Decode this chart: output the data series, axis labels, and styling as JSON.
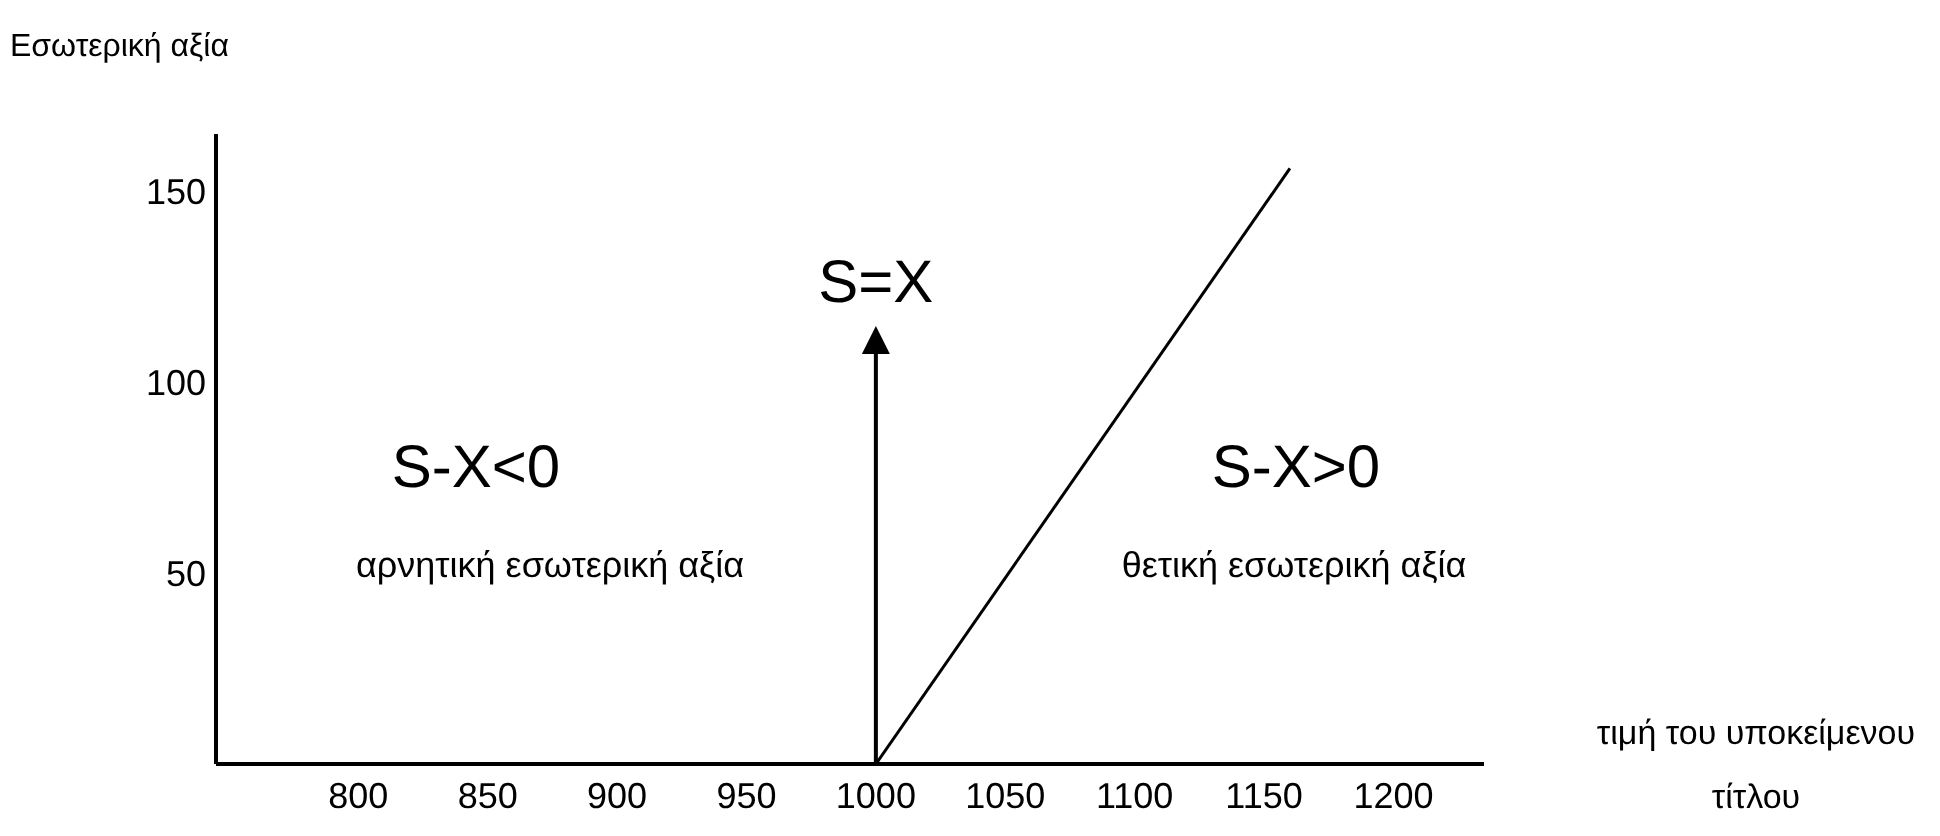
{
  "chart_data": {
    "type": "line",
    "ylabel": "Εσωτερική αξία",
    "xlabel": "τιμή του υποκείμενου τίτλου",
    "xlim": [
      745,
      1235
    ],
    "xticks": [
      800,
      850,
      900,
      950,
      1000,
      1050,
      1100,
      1150,
      1200
    ],
    "ylim": [
      0,
      165
    ],
    "yticks": [
      50,
      100,
      150
    ],
    "grid": false,
    "marker": "none",
    "line_style": "solid",
    "ref_lines": [
      {
        "axis": "x",
        "value": 1000,
        "label": "S=X"
      }
    ],
    "series": [
      {
        "color": "#000000",
        "x": [
          1000,
          1160
        ],
        "values": [
          0,
          156
        ]
      }
    ],
    "annotations": [
      "S-X<0",
      "αρνητική εσωτερική αξία",
      "S-X>0",
      "θετική εσωτερική αξία"
    ]
  }
}
